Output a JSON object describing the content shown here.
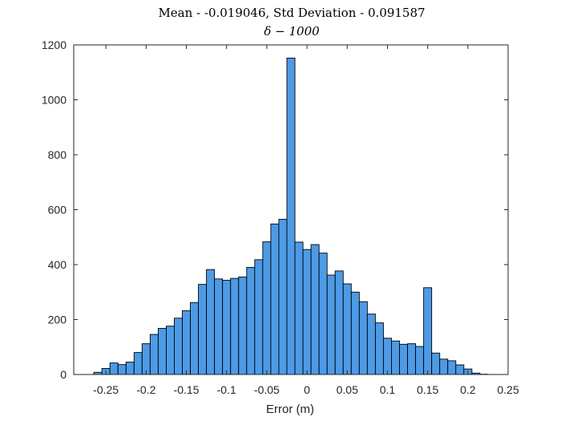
{
  "chart_data": {
    "type": "bar",
    "title": "Mean - -0.019046, Std Deviation - 0.091587",
    "subtitle": "δ − 1000",
    "xlabel": "Error (m)",
    "ylabel": "",
    "xlim": [
      -0.29,
      0.25
    ],
    "ylim": [
      0,
      1200
    ],
    "bin_width": 0.01,
    "x_ticks": [
      -0.25,
      -0.2,
      -0.15,
      -0.1,
      -0.05,
      0,
      0.05,
      0.1,
      0.15,
      0.2,
      0.25
    ],
    "x_tick_labels": [
      "-0.25",
      "-0.2",
      "-0.15",
      "-0.1",
      "-0.05",
      "0",
      "0.05",
      "0.1",
      "0.15",
      "0.2",
      "0.25"
    ],
    "y_ticks": [
      0,
      200,
      400,
      600,
      800,
      1000,
      1200
    ],
    "y_tick_labels": [
      "0",
      "200",
      "400",
      "600",
      "800",
      "1000",
      "1200"
    ],
    "bin_starts": [
      -0.265,
      -0.255,
      -0.245,
      -0.235,
      -0.225,
      -0.215,
      -0.205,
      -0.195,
      -0.185,
      -0.175,
      -0.165,
      -0.155,
      -0.145,
      -0.135,
      -0.125,
      -0.115,
      -0.105,
      -0.095,
      -0.085,
      -0.075,
      -0.065,
      -0.055,
      -0.045,
      -0.035,
      -0.025,
      -0.015,
      -0.005,
      0.005,
      0.015,
      0.025,
      0.035,
      0.045,
      0.055,
      0.065,
      0.075,
      0.085,
      0.095,
      0.105,
      0.115,
      0.125,
      0.135,
      0.145,
      0.155,
      0.165,
      0.175,
      0.185,
      0.195,
      0.205,
      0.215
    ],
    "values": [
      8,
      22,
      42,
      36,
      45,
      80,
      112,
      146,
      168,
      176,
      205,
      232,
      262,
      328,
      382,
      348,
      343,
      350,
      355,
      390,
      418,
      483,
      548,
      565,
      1152,
      482,
      455,
      473,
      442,
      362,
      377,
      330,
      300,
      265,
      220,
      188,
      132,
      122,
      110,
      112,
      102,
      316,
      78,
      56,
      50,
      35,
      20,
      5,
      1
    ],
    "bar_color": "#4d9be6",
    "grid": false,
    "box": true
  }
}
